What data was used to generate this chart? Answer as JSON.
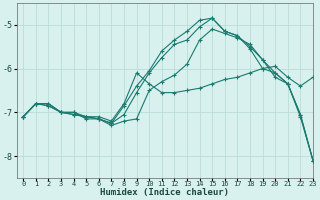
{
  "xlabel": "Humidex (Indice chaleur)",
  "bg_color": "#d8f0ee",
  "grid_color": "#b8ddd8",
  "line_color": "#1a7a6e",
  "xlim": [
    -0.5,
    23
  ],
  "ylim": [
    -8.5,
    -4.5
  ],
  "yticks": [
    -8,
    -7,
    -6,
    -5
  ],
  "xticks": [
    0,
    1,
    2,
    3,
    4,
    5,
    6,
    7,
    8,
    9,
    10,
    11,
    12,
    13,
    14,
    15,
    16,
    17,
    18,
    19,
    20,
    21,
    22,
    23
  ],
  "series": [
    {
      "x": [
        0,
        1,
        2,
        3,
        4,
        5,
        6,
        7,
        8,
        9,
        10,
        11,
        12,
        13,
        14,
        15,
        16,
        17,
        18,
        19,
        20,
        21,
        22,
        23
      ],
      "y": [
        -7.1,
        -6.8,
        -6.8,
        -7.0,
        -7.0,
        -7.1,
        -7.1,
        -7.2,
        -6.8,
        -6.1,
        -6.35,
        -6.55,
        -6.55,
        -6.5,
        -6.45,
        -6.35,
        -6.25,
        -6.2,
        -6.1,
        -6.0,
        -5.95,
        -6.2,
        -6.4,
        -6.2
      ]
    },
    {
      "x": [
        0,
        1,
        2,
        3,
        4,
        5,
        6,
        7,
        8,
        9,
        10,
        11,
        12,
        13,
        14,
        15,
        16,
        17,
        18,
        19,
        20,
        21,
        22,
        23
      ],
      "y": [
        -7.1,
        -6.8,
        -6.8,
        -7.0,
        -7.0,
        -7.15,
        -7.15,
        -7.3,
        -7.2,
        -7.15,
        -6.5,
        -6.3,
        -6.15,
        -5.9,
        -5.35,
        -5.1,
        -5.2,
        -5.3,
        -5.45,
        -5.8,
        -6.2,
        -6.35,
        -7.1,
        -8.1
      ]
    },
    {
      "x": [
        0,
        1,
        2,
        3,
        4,
        5,
        6,
        7,
        8,
        9,
        10,
        11,
        12,
        13,
        14,
        15,
        16,
        17,
        18,
        19,
        20,
        21,
        22,
        23
      ],
      "y": [
        -7.1,
        -6.8,
        -6.85,
        -7.0,
        -7.05,
        -7.1,
        -7.15,
        -7.25,
        -7.05,
        -6.55,
        -6.1,
        -5.75,
        -5.45,
        -5.35,
        -5.05,
        -4.85,
        -5.15,
        -5.25,
        -5.5,
        -5.8,
        -6.1,
        -6.35,
        -7.05,
        -8.1
      ]
    },
    {
      "x": [
        0,
        1,
        2,
        3,
        4,
        5,
        6,
        7,
        8,
        9,
        10,
        11,
        12,
        13,
        14,
        15,
        16,
        17,
        18,
        19,
        20,
        21,
        22,
        23
      ],
      "y": [
        -7.1,
        -6.8,
        -6.85,
        -7.0,
        -7.05,
        -7.1,
        -7.15,
        -7.25,
        -6.85,
        -6.4,
        -6.05,
        -5.6,
        -5.35,
        -5.15,
        -4.9,
        -4.85,
        -5.15,
        -5.25,
        -5.55,
        -6.0,
        -6.1,
        -6.35,
        -7.05,
        -8.1
      ]
    }
  ]
}
